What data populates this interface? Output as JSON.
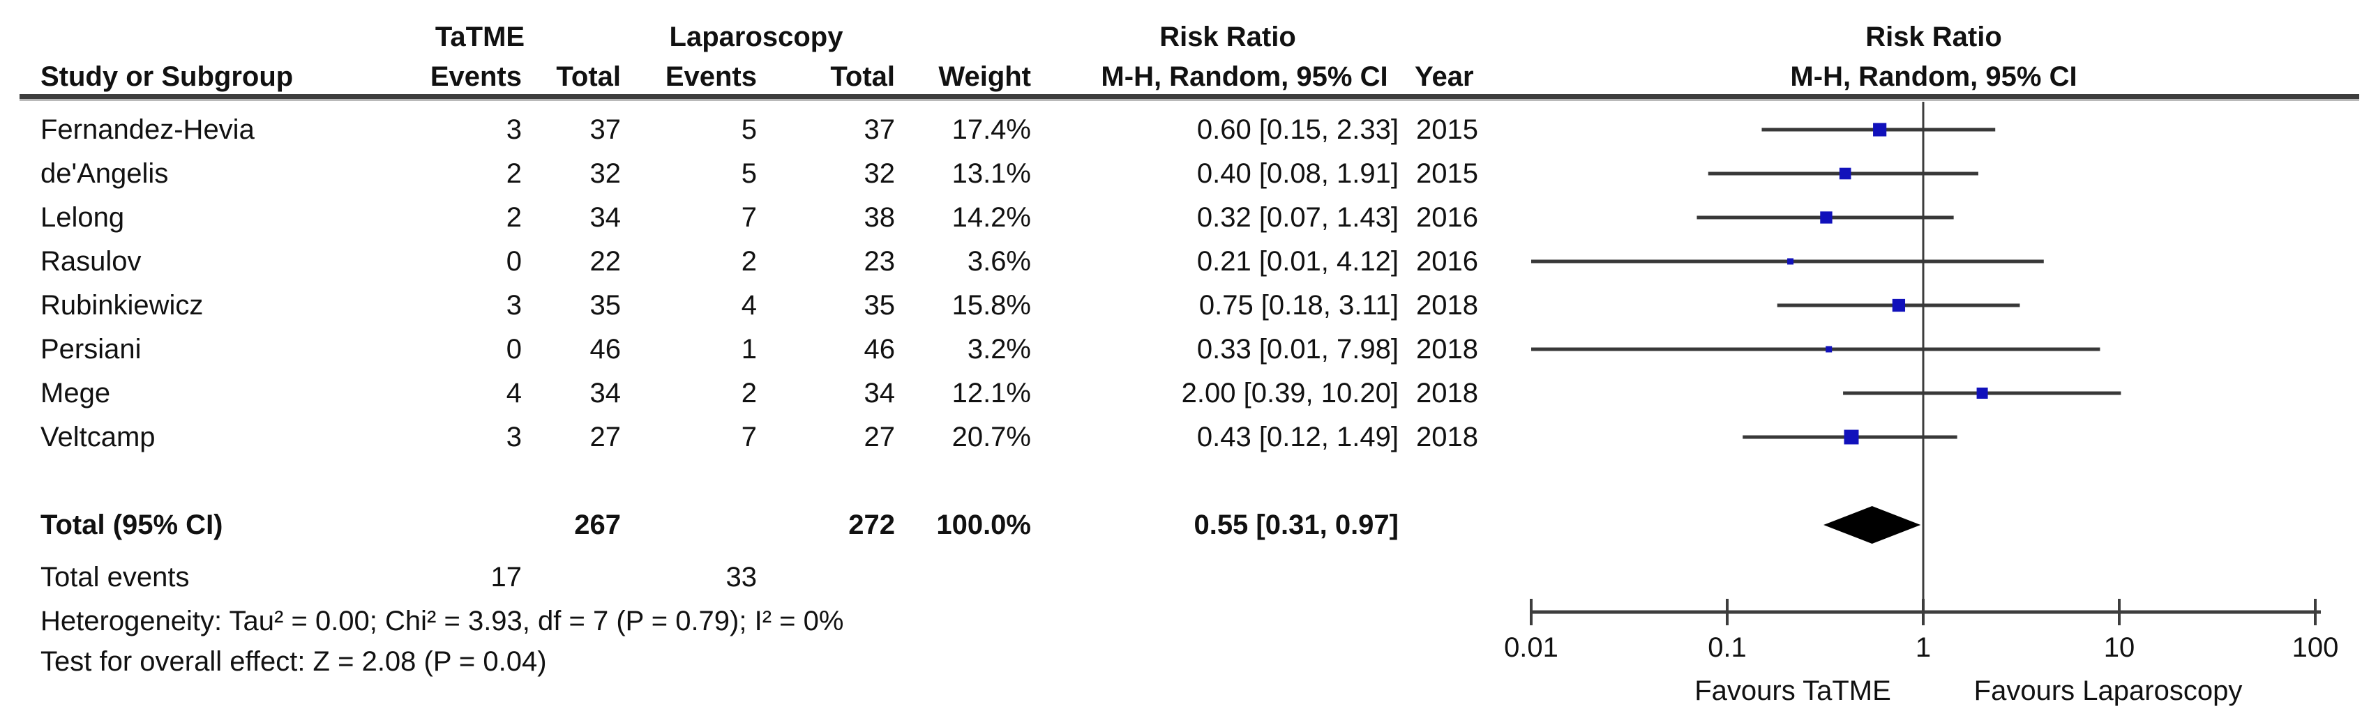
{
  "figure": {
    "headers": {
      "study": "Study or Subgroup",
      "group1": "TaTME",
      "group2": "Laparoscopy",
      "events": "Events",
      "total": "Total",
      "weight": "Weight",
      "risk_ratio": "Risk Ratio",
      "method_ci": "M-H, Random, 95% CI",
      "year": "Year"
    },
    "totals_row": {
      "label": "Total (95% CI)",
      "total_tatme": "267",
      "total_lap": "272",
      "weight": "100.0%",
      "rr_ci": "0.55 [0.31, 0.97]"
    },
    "total_events_row": {
      "label": "Total events",
      "tatme": "17",
      "lap": "33"
    },
    "heterogeneity": "Heterogeneity: Tau² = 0.00; Chi² = 3.93, df = 7 (P = 0.79); I² = 0%",
    "overall_effect": "Test for overall effect: Z = 2.08 (P = 0.04)"
  },
  "chart_data": {
    "type": "forest",
    "x_scale": "log10",
    "xlim": [
      0.01,
      100
    ],
    "x_ticks": [
      "0.01",
      "0.1",
      "1",
      "10",
      "100"
    ],
    "footer_left": "Favours TaTME",
    "footer_right": "Favours Laparoscopy",
    "effect_label": "Risk Ratio",
    "method_label": "M-H, Random, 95% CI",
    "marker_color": "#1111bb",
    "line_color": "#3d3d3d",
    "diamond_color": "#000000",
    "studies": [
      {
        "name": "Fernandez-Hevia",
        "tatme_events": "3",
        "tatme_total": "37",
        "lap_events": "5",
        "lap_total": "37",
        "weight": "17.4%",
        "weight_pct": 17.4,
        "rr": 0.6,
        "ci_low": 0.15,
        "ci_high": 2.33,
        "rr_ci_text": "0.60 [0.15, 2.33]",
        "year": "2015"
      },
      {
        "name": "de'Angelis",
        "tatme_events": "2",
        "tatme_total": "32",
        "lap_events": "5",
        "lap_total": "32",
        "weight": "13.1%",
        "weight_pct": 13.1,
        "rr": 0.4,
        "ci_low": 0.08,
        "ci_high": 1.91,
        "rr_ci_text": "0.40 [0.08, 1.91]",
        "year": "2015"
      },
      {
        "name": "Lelong",
        "tatme_events": "2",
        "tatme_total": "34",
        "lap_events": "7",
        "lap_total": "38",
        "weight": "14.2%",
        "weight_pct": 14.2,
        "rr": 0.32,
        "ci_low": 0.07,
        "ci_high": 1.43,
        "rr_ci_text": "0.32 [0.07, 1.43]",
        "year": "2016"
      },
      {
        "name": "Rasulov",
        "tatme_events": "0",
        "tatme_total": "22",
        "lap_events": "2",
        "lap_total": "23",
        "weight": "3.6%",
        "weight_pct": 3.6,
        "rr": 0.21,
        "ci_low": 0.01,
        "ci_high": 4.12,
        "rr_ci_text": "0.21 [0.01, 4.12]",
        "year": "2016"
      },
      {
        "name": "Rubinkiewicz",
        "tatme_events": "3",
        "tatme_total": "35",
        "lap_events": "4",
        "lap_total": "35",
        "weight": "15.8%",
        "weight_pct": 15.8,
        "rr": 0.75,
        "ci_low": 0.18,
        "ci_high": 3.11,
        "rr_ci_text": "0.75 [0.18, 3.11]",
        "year": "2018"
      },
      {
        "name": "Persiani",
        "tatme_events": "0",
        "tatme_total": "46",
        "lap_events": "1",
        "lap_total": "46",
        "weight": "3.2%",
        "weight_pct": 3.2,
        "rr": 0.33,
        "ci_low": 0.01,
        "ci_high": 7.98,
        "rr_ci_text": "0.33 [0.01, 7.98]",
        "year": "2018"
      },
      {
        "name": "Mege",
        "tatme_events": "4",
        "tatme_total": "34",
        "lap_events": "2",
        "lap_total": "34",
        "weight": "12.1%",
        "weight_pct": 12.1,
        "rr": 2.0,
        "ci_low": 0.39,
        "ci_high": 10.2,
        "rr_ci_text": "2.00 [0.39, 10.20]",
        "year": "2018"
      },
      {
        "name": "Veltcamp",
        "tatme_events": "3",
        "tatme_total": "27",
        "lap_events": "7",
        "lap_total": "27",
        "weight": "20.7%",
        "weight_pct": 20.7,
        "rr": 0.43,
        "ci_low": 0.12,
        "ci_high": 1.49,
        "rr_ci_text": "0.43 [0.12, 1.49]",
        "year": "2018"
      }
    ],
    "total": {
      "rr": 0.55,
      "ci_low": 0.31,
      "ci_high": 0.97
    }
  }
}
